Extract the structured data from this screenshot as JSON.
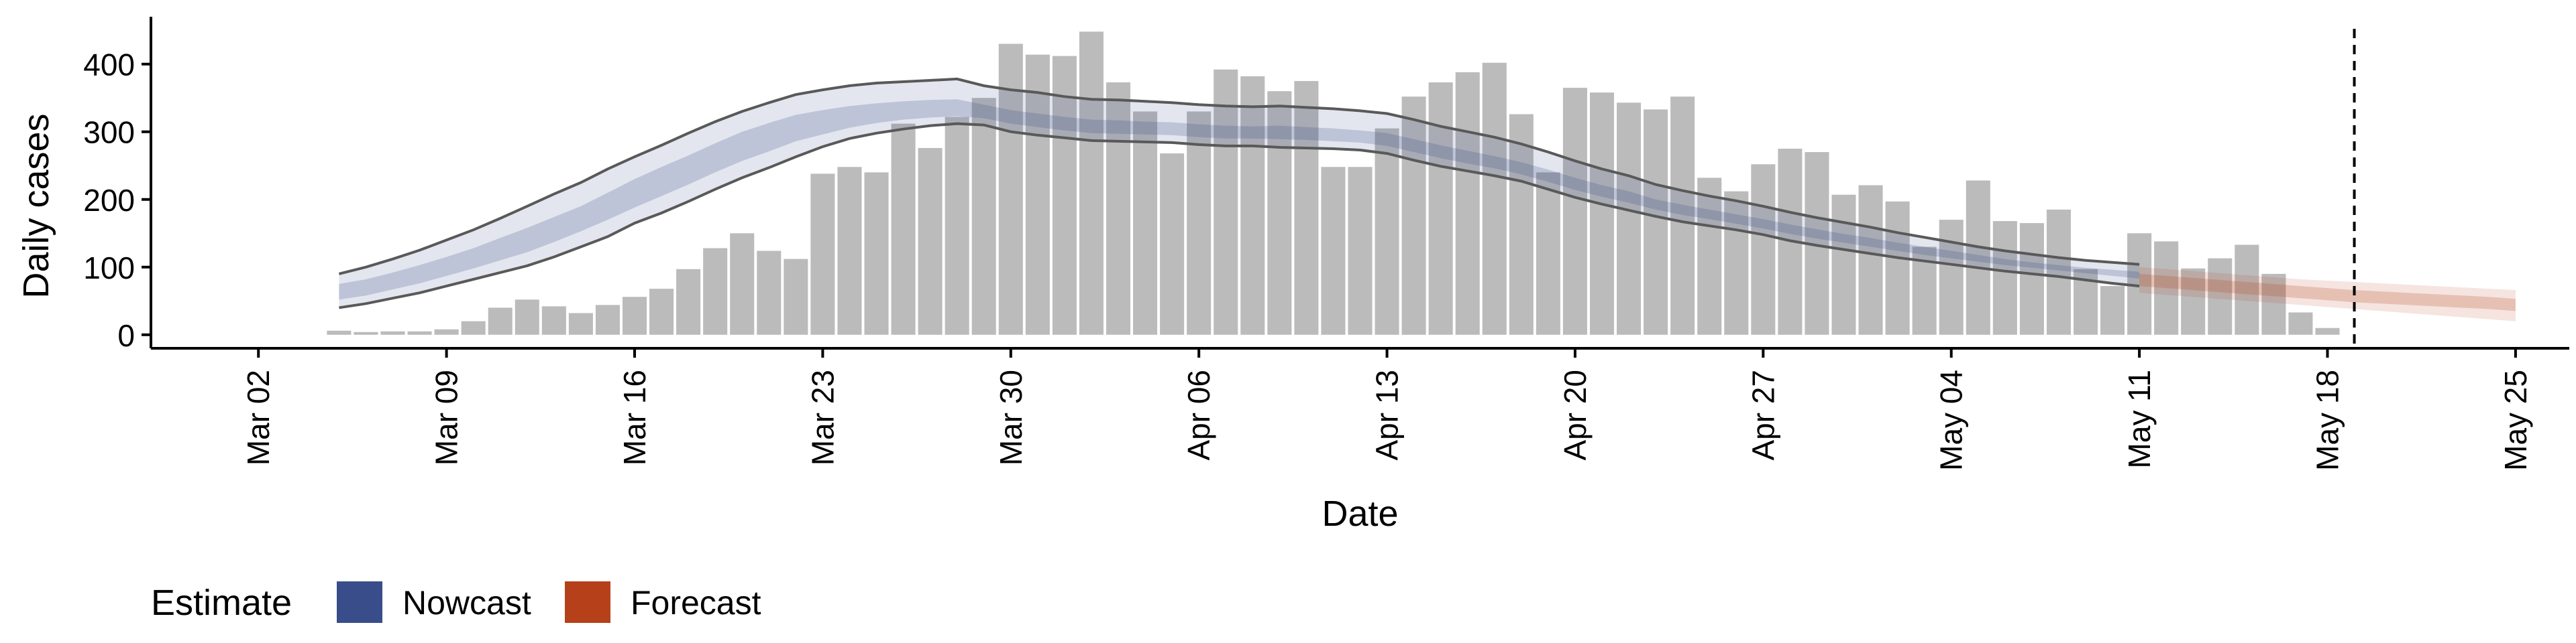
{
  "chart_data": {
    "type": "bar",
    "title": "",
    "xlabel": "Date",
    "ylabel": "Daily cases",
    "ylim": [
      -20,
      470
    ],
    "xlim": [
      "2020-02-27",
      "2020-05-27"
    ],
    "y_ticks": [
      0,
      100,
      200,
      300,
      400
    ],
    "x_ticks": [
      {
        "date": "2020-03-02",
        "label": "Mar 02"
      },
      {
        "date": "2020-03-09",
        "label": "Mar 09"
      },
      {
        "date": "2020-03-16",
        "label": "Mar 16"
      },
      {
        "date": "2020-03-23",
        "label": "Mar 23"
      },
      {
        "date": "2020-03-30",
        "label": "Mar 30"
      },
      {
        "date": "2020-04-06",
        "label": "Apr 06"
      },
      {
        "date": "2020-04-13",
        "label": "Apr 13"
      },
      {
        "date": "2020-04-20",
        "label": "Apr 20"
      },
      {
        "date": "2020-04-27",
        "label": "Apr 27"
      },
      {
        "date": "2020-05-04",
        "label": "May 04"
      },
      {
        "date": "2020-05-11",
        "label": "May 11"
      },
      {
        "date": "2020-05-18",
        "label": "May 18"
      },
      {
        "date": "2020-05-25",
        "label": "May 25"
      }
    ],
    "grid": false,
    "reference_line": {
      "date": "2020-05-19",
      "style": "dashed"
    },
    "bars": {
      "color": "#bbbbbb",
      "x": [
        "2020-03-05",
        "2020-03-06",
        "2020-03-07",
        "2020-03-08",
        "2020-03-09",
        "2020-03-10",
        "2020-03-11",
        "2020-03-12",
        "2020-03-13",
        "2020-03-14",
        "2020-03-15",
        "2020-03-16",
        "2020-03-17",
        "2020-03-18",
        "2020-03-19",
        "2020-03-20",
        "2020-03-21",
        "2020-03-22",
        "2020-03-23",
        "2020-03-24",
        "2020-03-25",
        "2020-03-26",
        "2020-03-27",
        "2020-03-28",
        "2020-03-29",
        "2020-03-30",
        "2020-03-31",
        "2020-04-01",
        "2020-04-02",
        "2020-04-03",
        "2020-04-04",
        "2020-04-05",
        "2020-04-06",
        "2020-04-07",
        "2020-04-08",
        "2020-04-09",
        "2020-04-10",
        "2020-04-11",
        "2020-04-12",
        "2020-04-13",
        "2020-04-14",
        "2020-04-15",
        "2020-04-16",
        "2020-04-17",
        "2020-04-18",
        "2020-04-19",
        "2020-04-20",
        "2020-04-21",
        "2020-04-22",
        "2020-04-23",
        "2020-04-24",
        "2020-04-25",
        "2020-04-26",
        "2020-04-27",
        "2020-04-28",
        "2020-04-29",
        "2020-04-30",
        "2020-05-01",
        "2020-05-02",
        "2020-05-03",
        "2020-05-04",
        "2020-05-05",
        "2020-05-06",
        "2020-05-07",
        "2020-05-08",
        "2020-05-09",
        "2020-05-10",
        "2020-05-11",
        "2020-05-12",
        "2020-05-13",
        "2020-05-14",
        "2020-05-15",
        "2020-05-16",
        "2020-05-17",
        "2020-05-18"
      ],
      "values": [
        6,
        4,
        5,
        5,
        8,
        20,
        40,
        52,
        42,
        32,
        44,
        56,
        68,
        97,
        128,
        150,
        124,
        112,
        238,
        248,
        240,
        312,
        276,
        322,
        350,
        430,
        414,
        412,
        448,
        373,
        330,
        268,
        330,
        392,
        382,
        360,
        375,
        248,
        248,
        305,
        352,
        373,
        388,
        402,
        326,
        240,
        365,
        358,
        343,
        333,
        352,
        232,
        212,
        252,
        275,
        270,
        207,
        221,
        197,
        130,
        170,
        228,
        168,
        165,
        185,
        97,
        72,
        150,
        138,
        98,
        113,
        133,
        90,
        33,
        10
      ]
    },
    "series": [
      {
        "name": "Nowcast",
        "color": "#384d8a",
        "x": [
          "2020-03-05",
          "2020-03-06",
          "2020-03-07",
          "2020-03-08",
          "2020-03-09",
          "2020-03-10",
          "2020-03-11",
          "2020-03-12",
          "2020-03-13",
          "2020-03-14",
          "2020-03-15",
          "2020-03-16",
          "2020-03-17",
          "2020-03-18",
          "2020-03-19",
          "2020-03-20",
          "2020-03-21",
          "2020-03-22",
          "2020-03-23",
          "2020-03-24",
          "2020-03-25",
          "2020-03-26",
          "2020-03-27",
          "2020-03-28",
          "2020-03-29",
          "2020-03-30",
          "2020-03-31",
          "2020-04-01",
          "2020-04-02",
          "2020-04-03",
          "2020-04-04",
          "2020-04-05",
          "2020-04-06",
          "2020-04-07",
          "2020-04-08",
          "2020-04-09",
          "2020-04-10",
          "2020-04-11",
          "2020-04-12",
          "2020-04-13",
          "2020-04-14",
          "2020-04-15",
          "2020-04-16",
          "2020-04-17",
          "2020-04-18",
          "2020-04-19",
          "2020-04-20",
          "2020-04-21",
          "2020-04-22",
          "2020-04-23",
          "2020-04-24",
          "2020-04-25",
          "2020-04-26",
          "2020-04-27",
          "2020-04-28",
          "2020-04-29",
          "2020-04-30",
          "2020-05-01",
          "2020-05-02",
          "2020-05-03",
          "2020-05-04",
          "2020-05-05",
          "2020-05-06",
          "2020-05-07",
          "2020-05-08",
          "2020-05-09",
          "2020-05-10",
          "2020-05-11"
        ],
        "outer_upper": [
          90,
          100,
          112,
          125,
          140,
          155,
          172,
          190,
          208,
          225,
          245,
          263,
          280,
          298,
          315,
          330,
          343,
          355,
          362,
          368,
          372,
          374,
          376,
          378,
          368,
          362,
          358,
          352,
          348,
          347,
          345,
          343,
          340,
          338,
          337,
          338,
          336,
          334,
          331,
          327,
          318,
          308,
          300,
          292,
          282,
          270,
          257,
          245,
          235,
          222,
          213,
          205,
          198,
          190,
          181,
          173,
          166,
          159,
          151,
          144,
          137,
          130,
          124,
          119,
          114,
          110,
          107,
          104
        ],
        "outer_lower": [
          40,
          46,
          54,
          62,
          72,
          82,
          92,
          102,
          115,
          130,
          145,
          165,
          180,
          197,
          215,
          232,
          247,
          263,
          278,
          290,
          298,
          304,
          309,
          312,
          310,
          300,
          295,
          291,
          287,
          286,
          285,
          284,
          281,
          279,
          279,
          277,
          276,
          275,
          273,
          268,
          258,
          249,
          242,
          235,
          227,
          215,
          203,
          193,
          184,
          175,
          167,
          161,
          155,
          148,
          139,
          132,
          126,
          120,
          114,
          109,
          104,
          99,
          94,
          90,
          86,
          81,
          76,
          72
        ],
        "inner_upper": [
          75,
          82,
          92,
          103,
          115,
          128,
          143,
          158,
          174,
          190,
          210,
          230,
          248,
          265,
          283,
          300,
          313,
          325,
          332,
          338,
          342,
          345,
          347,
          348,
          340,
          332,
          327,
          322,
          318,
          317,
          315,
          314,
          311,
          309,
          308,
          309,
          307,
          305,
          302,
          298,
          289,
          280,
          272,
          264,
          255,
          244,
          232,
          221,
          212,
          200,
          192,
          185,
          178,
          171,
          163,
          156,
          149,
          143,
          136,
          130,
          124,
          118,
          112,
          107,
          103,
          99,
          96,
          93
        ],
        "inner_lower": [
          52,
          58,
          67,
          76,
          87,
          98,
          110,
          122,
          137,
          153,
          170,
          188,
          205,
          222,
          240,
          257,
          271,
          286,
          296,
          306,
          313,
          318,
          321,
          323,
          320,
          312,
          307,
          302,
          298,
          297,
          296,
          295,
          292,
          290,
          290,
          289,
          288,
          286,
          284,
          279,
          270,
          261,
          253,
          246,
          237,
          226,
          214,
          204,
          195,
          185,
          177,
          171,
          164,
          157,
          149,
          142,
          136,
          130,
          124,
          118,
          113,
          108,
          103,
          99,
          95,
          91,
          87,
          83
        ]
      },
      {
        "name": "Forecast",
        "color": "#b5401a",
        "x": [
          "2020-05-11",
          "2020-05-12",
          "2020-05-13",
          "2020-05-14",
          "2020-05-15",
          "2020-05-16",
          "2020-05-17",
          "2020-05-18",
          "2020-05-19",
          "2020-05-20",
          "2020-05-21",
          "2020-05-22",
          "2020-05-23",
          "2020-05-24",
          "2020-05-25"
        ],
        "outer_upper": [
          100,
          97,
          94,
          91,
          88,
          85,
          82,
          80,
          78,
          76,
          74,
          72,
          70,
          68,
          66
        ],
        "outer_lower": [
          62,
          59,
          56,
          53,
          50,
          47,
          44,
          41,
          38,
          35,
          32,
          29,
          26,
          23,
          20
        ],
        "inner_upper": [
          90,
          87,
          84,
          81,
          78,
          75,
          72,
          69,
          66,
          64,
          62,
          60,
          58,
          56,
          53
        ],
        "inner_lower": [
          72,
          69,
          66,
          63,
          60,
          57,
          54,
          51,
          48,
          46,
          44,
          42,
          40,
          38,
          35
        ]
      }
    ],
    "legend": {
      "title": "Estimate",
      "placement": "bottom-left",
      "items": [
        {
          "label": "Nowcast",
          "color": "#384d8a"
        },
        {
          "label": "Forecast",
          "color": "#b5401a"
        }
      ]
    }
  }
}
